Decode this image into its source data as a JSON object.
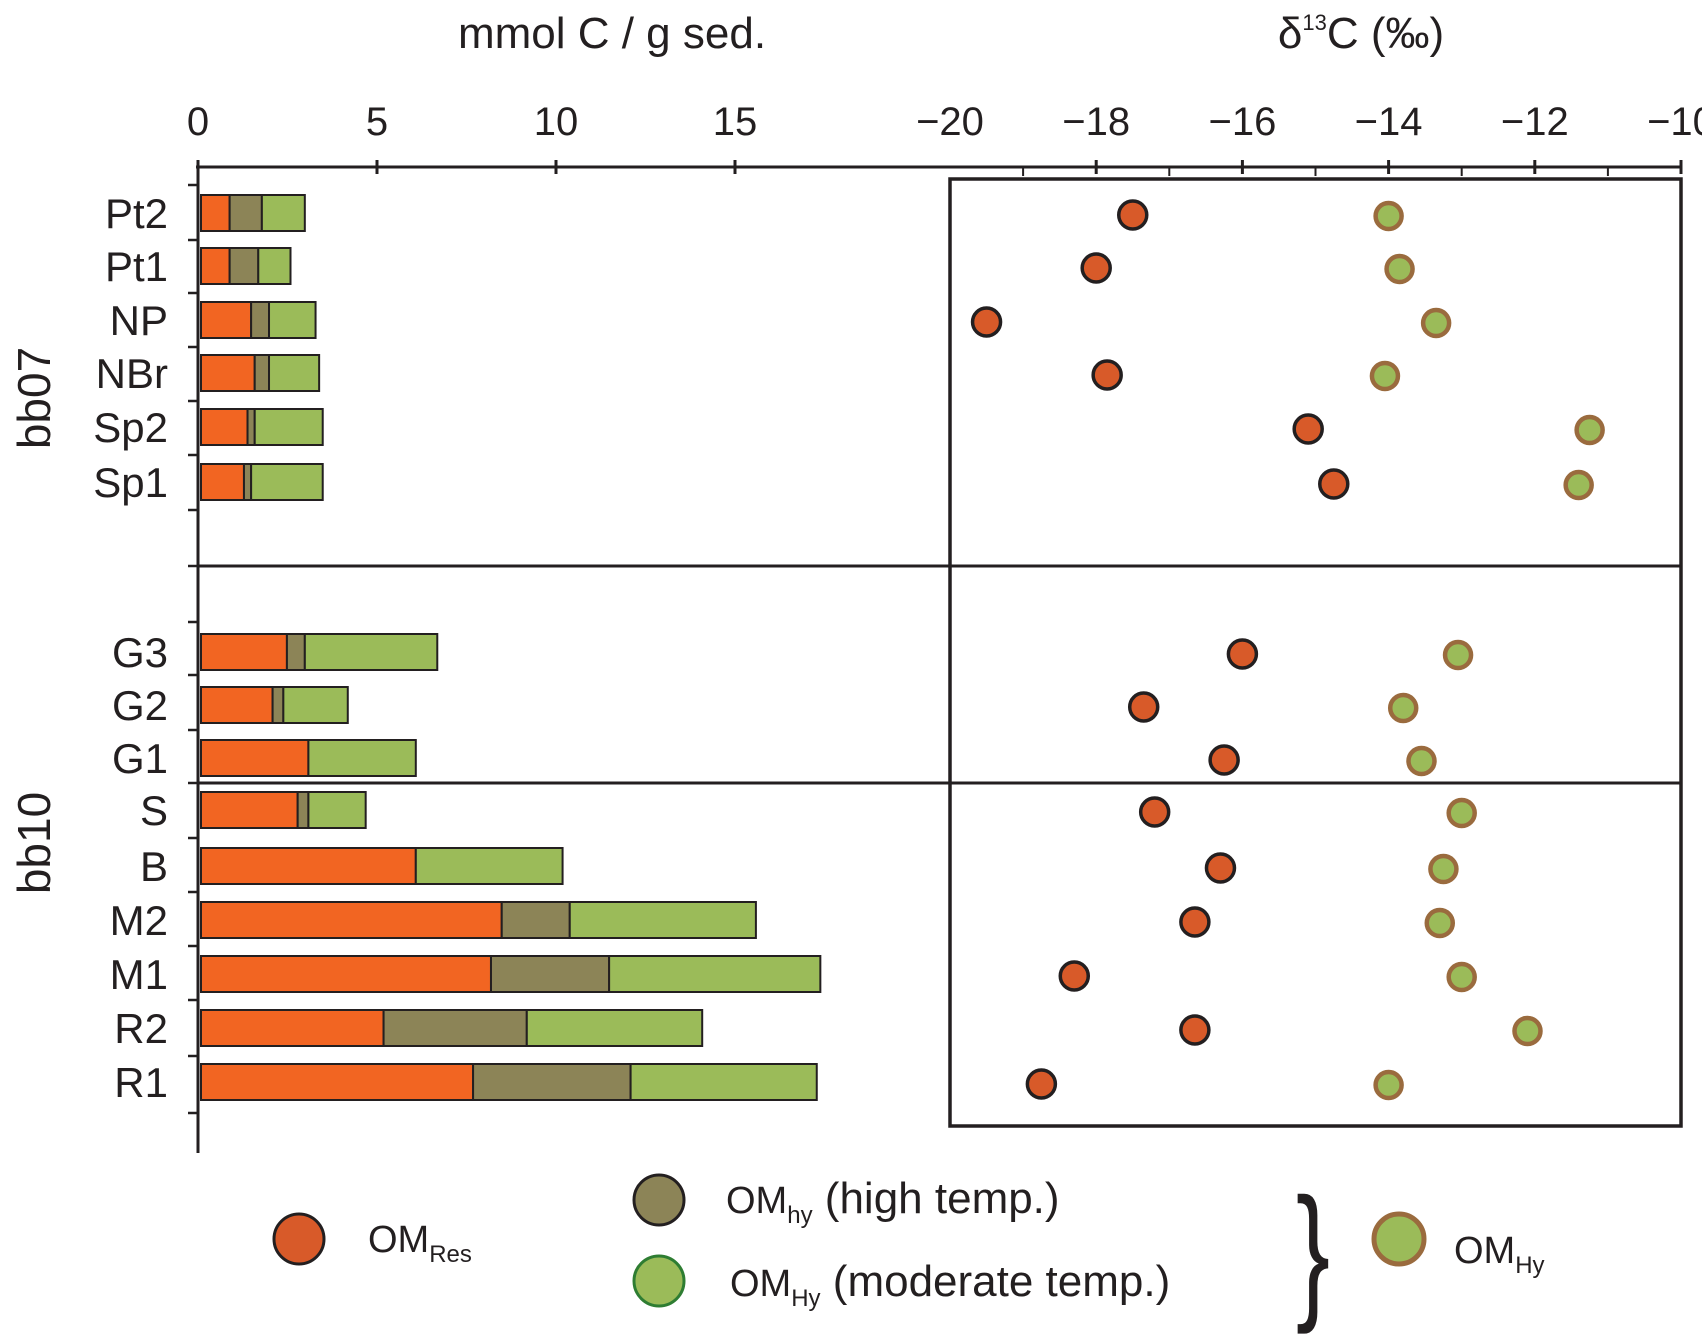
{
  "chart_data": [
    {
      "type": "bar",
      "stacked": true,
      "orientation": "horizontal",
      "xlabel": "mmol C / g sed.",
      "xlim": [
        0,
        17
      ],
      "xticks": [
        0,
        5,
        10,
        15
      ],
      "group_labels": [
        "bb07",
        "bb10"
      ],
      "categories": [
        "Pt2",
        "Pt1",
        "NP",
        "NBr",
        "Sp2",
        "Sp1",
        "G3",
        "G2",
        "G1",
        "S",
        "B",
        "M2",
        "M1",
        "R2",
        "R1"
      ],
      "series": [
        {
          "name": "OM_Res",
          "color": "#f26522",
          "values": [
            0.8,
            0.8,
            1.4,
            1.5,
            1.3,
            1.2,
            2.4,
            2.0,
            3.0,
            2.7,
            6.0,
            8.4,
            8.1,
            5.1,
            7.6
          ]
        },
        {
          "name": "OM_hy (high temp.)",
          "color": "#8c8457",
          "values": [
            0.9,
            0.8,
            0.5,
            0.4,
            0.2,
            0.2,
            0.5,
            0.3,
            0.0,
            0.3,
            0.0,
            1.9,
            3.3,
            4.0,
            4.4
          ]
        },
        {
          "name": "OM_Hy (moderate temp.)",
          "color": "#9bbb59",
          "values": [
            1.2,
            0.9,
            1.3,
            1.4,
            1.9,
            2.0,
            3.7,
            1.8,
            3.0,
            1.6,
            4.1,
            5.2,
            5.9,
            4.9,
            5.2
          ]
        }
      ]
    },
    {
      "type": "scatter",
      "xlabel": "δ13C (‰)",
      "xlim": [
        -20,
        -10
      ],
      "xticks": [
        -20,
        -18,
        -16,
        -14,
        -12,
        -10
      ],
      "categories": [
        "Pt2",
        "Pt1",
        "NP",
        "NBr",
        "Sp2",
        "Sp1",
        "G3",
        "G2",
        "G1",
        "S",
        "B",
        "M2",
        "M1",
        "R2",
        "R1"
      ],
      "series": [
        {
          "name": "OM_Res",
          "fill": "#d85a29",
          "stroke": "#231f20",
          "values": [
            -17.5,
            -18.0,
            -19.5,
            -17.85,
            -15.1,
            -14.75,
            -16.0,
            -17.35,
            -16.25,
            -17.2,
            -16.3,
            -16.65,
            -18.3,
            -16.65,
            -18.75
          ]
        },
        {
          "name": "OM_Hy",
          "fill": "#9bbb59",
          "stroke": "#9a6b3e",
          "values": [
            -14.0,
            -13.85,
            -13.35,
            -14.05,
            -11.25,
            -11.4,
            -13.05,
            -13.8,
            -13.55,
            -13.0,
            -13.25,
            -13.3,
            -13.0,
            -12.1,
            -14.0
          ]
        }
      ]
    }
  ],
  "axis_labels": {
    "left_top": "mmol C / g sed.",
    "right_top_prefix": "δ",
    "right_top_sup": "13",
    "right_top_suffix": "C (‰)"
  },
  "groups": [
    "bb07",
    "bb10"
  ],
  "legend": {
    "res_main": "OM",
    "res_sub": "Res",
    "high_main": "OM",
    "high_sub": "hy",
    "high_rest": " (high temp.)",
    "mod_main": "OM",
    "mod_sub": "Hy",
    "mod_rest": " (moderate temp.)",
    "brace": "}",
    "hy_main": "OM",
    "hy_sub": "Hy",
    "colors": {
      "res": "#d85a29",
      "high": "#8c8457",
      "mod": "#9bbb59",
      "mod_stroke": "#2e7d32",
      "hy_stroke": "#9a6b3e"
    }
  }
}
